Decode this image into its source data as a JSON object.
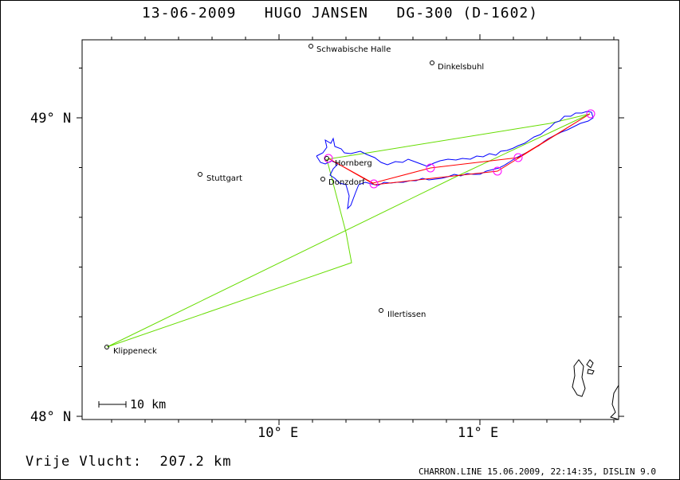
{
  "header": {
    "date": "13-06-2009",
    "pilot": "HUGO JANSEN",
    "glider": "DG-300 (D-1602)"
  },
  "map": {
    "lat_labels": [
      "49° N",
      "48° N"
    ],
    "lon_labels": [
      "10° E",
      "11° E"
    ],
    "towns": [
      {
        "name": "Schwabische Halle"
      },
      {
        "name": "Dinkelsbuhl"
      },
      {
        "name": "Stuttgart"
      },
      {
        "name": "Donzdorf"
      },
      {
        "name": "Hornberg"
      },
      {
        "name": "Illertissen"
      },
      {
        "name": "Klippeneck"
      }
    ],
    "colors": {
      "track": "#0000ff",
      "optimized_route": "#ff0000",
      "task_legs": "#66dd00",
      "turnpoints": "#ff00ff",
      "frame": "#000000"
    },
    "scale_bar_label": "10 km"
  },
  "footer": {
    "flight_label": "Vrije Vlucht:",
    "distance": "207.2 km",
    "credit": "CHARRON.LINE 15.06.2009, 22:14:35, DISLIN 9.0"
  }
}
